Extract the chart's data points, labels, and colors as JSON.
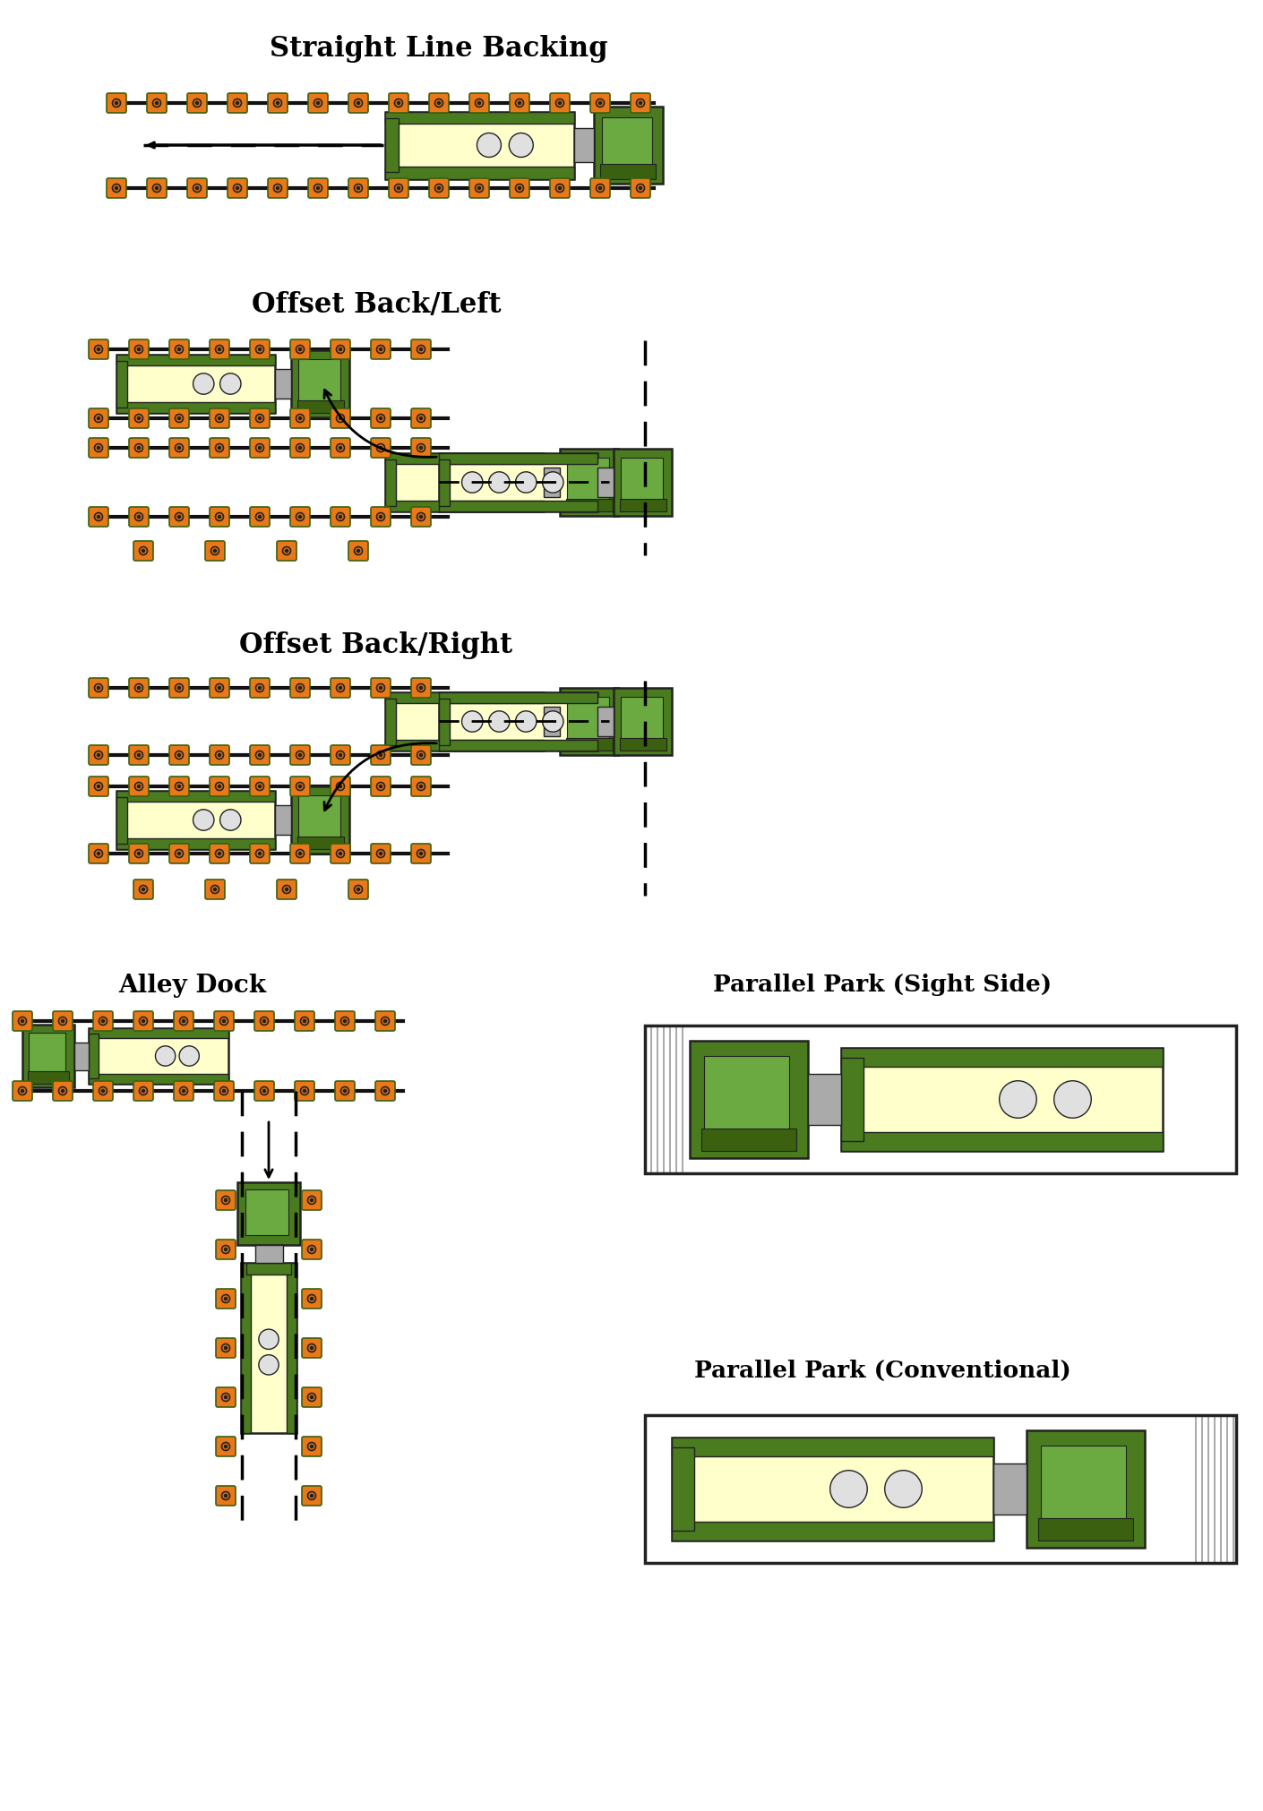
{
  "bg_color": "#ffffff",
  "trailer_color": "#ffffcc",
  "cab_color": "#4a7c1f",
  "cab_dark": "#3a6010",
  "outline": "#222222",
  "cone_orange": "#e87818",
  "cone_inner": "#222222",
  "gray_coupler": "#aaaaaa",
  "window_color": "#6aaa40",
  "dashed_color": "#111111",
  "lane_line_color": "#111111",
  "hatch_color": "#999999",
  "sections": {
    "s1_title": "Straight Line Backing",
    "s2_title": "Offset Back/Left",
    "s3_title": "Offset Back/Right",
    "s4_title": "Alley Dock",
    "s5_title": "Parallel Park (Sight Side)",
    "s6_title": "Parallel Park (Conventional)"
  }
}
